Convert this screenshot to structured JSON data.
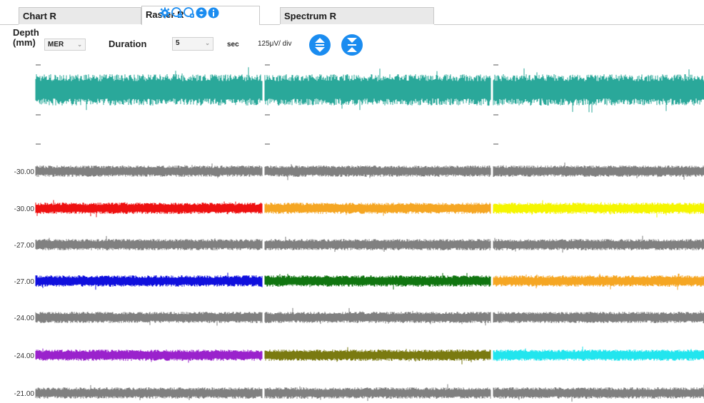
{
  "tabs": [
    {
      "label": "Chart R",
      "active": false
    },
    {
      "label": "Raster R",
      "active": true
    },
    {
      "label": "Spectrum R",
      "active": false
    }
  ],
  "tab_icons": [
    "gear-icon",
    "zoom-out-icon",
    "zoom-in-icon",
    "collapse-icon",
    "info-icon"
  ],
  "toolbar": {
    "depth_label_line1": "Depth",
    "depth_label_line2": "(mm)",
    "depth_select": "MER",
    "duration_label": "Duration",
    "duration_select": "5",
    "sec_label": "sec",
    "scale_label": "125μV/ div",
    "button_icons": [
      "expand-vertical-icon",
      "compress-vertical-icon"
    ]
  },
  "colors": {
    "accent": "#1a8cf0",
    "teal": "#2aa89a",
    "grey": "#808080"
  },
  "raster_rows": [
    {
      "depth": "",
      "colors": [
        "#2aa89a",
        "#2aa89a",
        "#2aa89a"
      ],
      "amplitude": "large"
    },
    {
      "depth": "-30.00",
      "colors": [
        "#808080",
        "#808080",
        "#808080"
      ]
    },
    {
      "depth": "-30.00",
      "colors": [
        "#ee1111",
        "#f5a623",
        "#f5f500"
      ]
    },
    {
      "depth": "-27.00",
      "colors": [
        "#808080",
        "#808080",
        "#808080"
      ]
    },
    {
      "depth": "-27.00",
      "colors": [
        "#1010dd",
        "#107510",
        "#f5a623"
      ]
    },
    {
      "depth": "-24.00",
      "colors": [
        "#808080",
        "#808080",
        "#808080"
      ]
    },
    {
      "depth": "-24.00",
      "colors": [
        "#9a22cc",
        "#7a7a10",
        "#22e5ee"
      ]
    },
    {
      "depth": "-21.00",
      "colors": [
        "#808080",
        "#808080",
        "#808080"
      ]
    }
  ]
}
